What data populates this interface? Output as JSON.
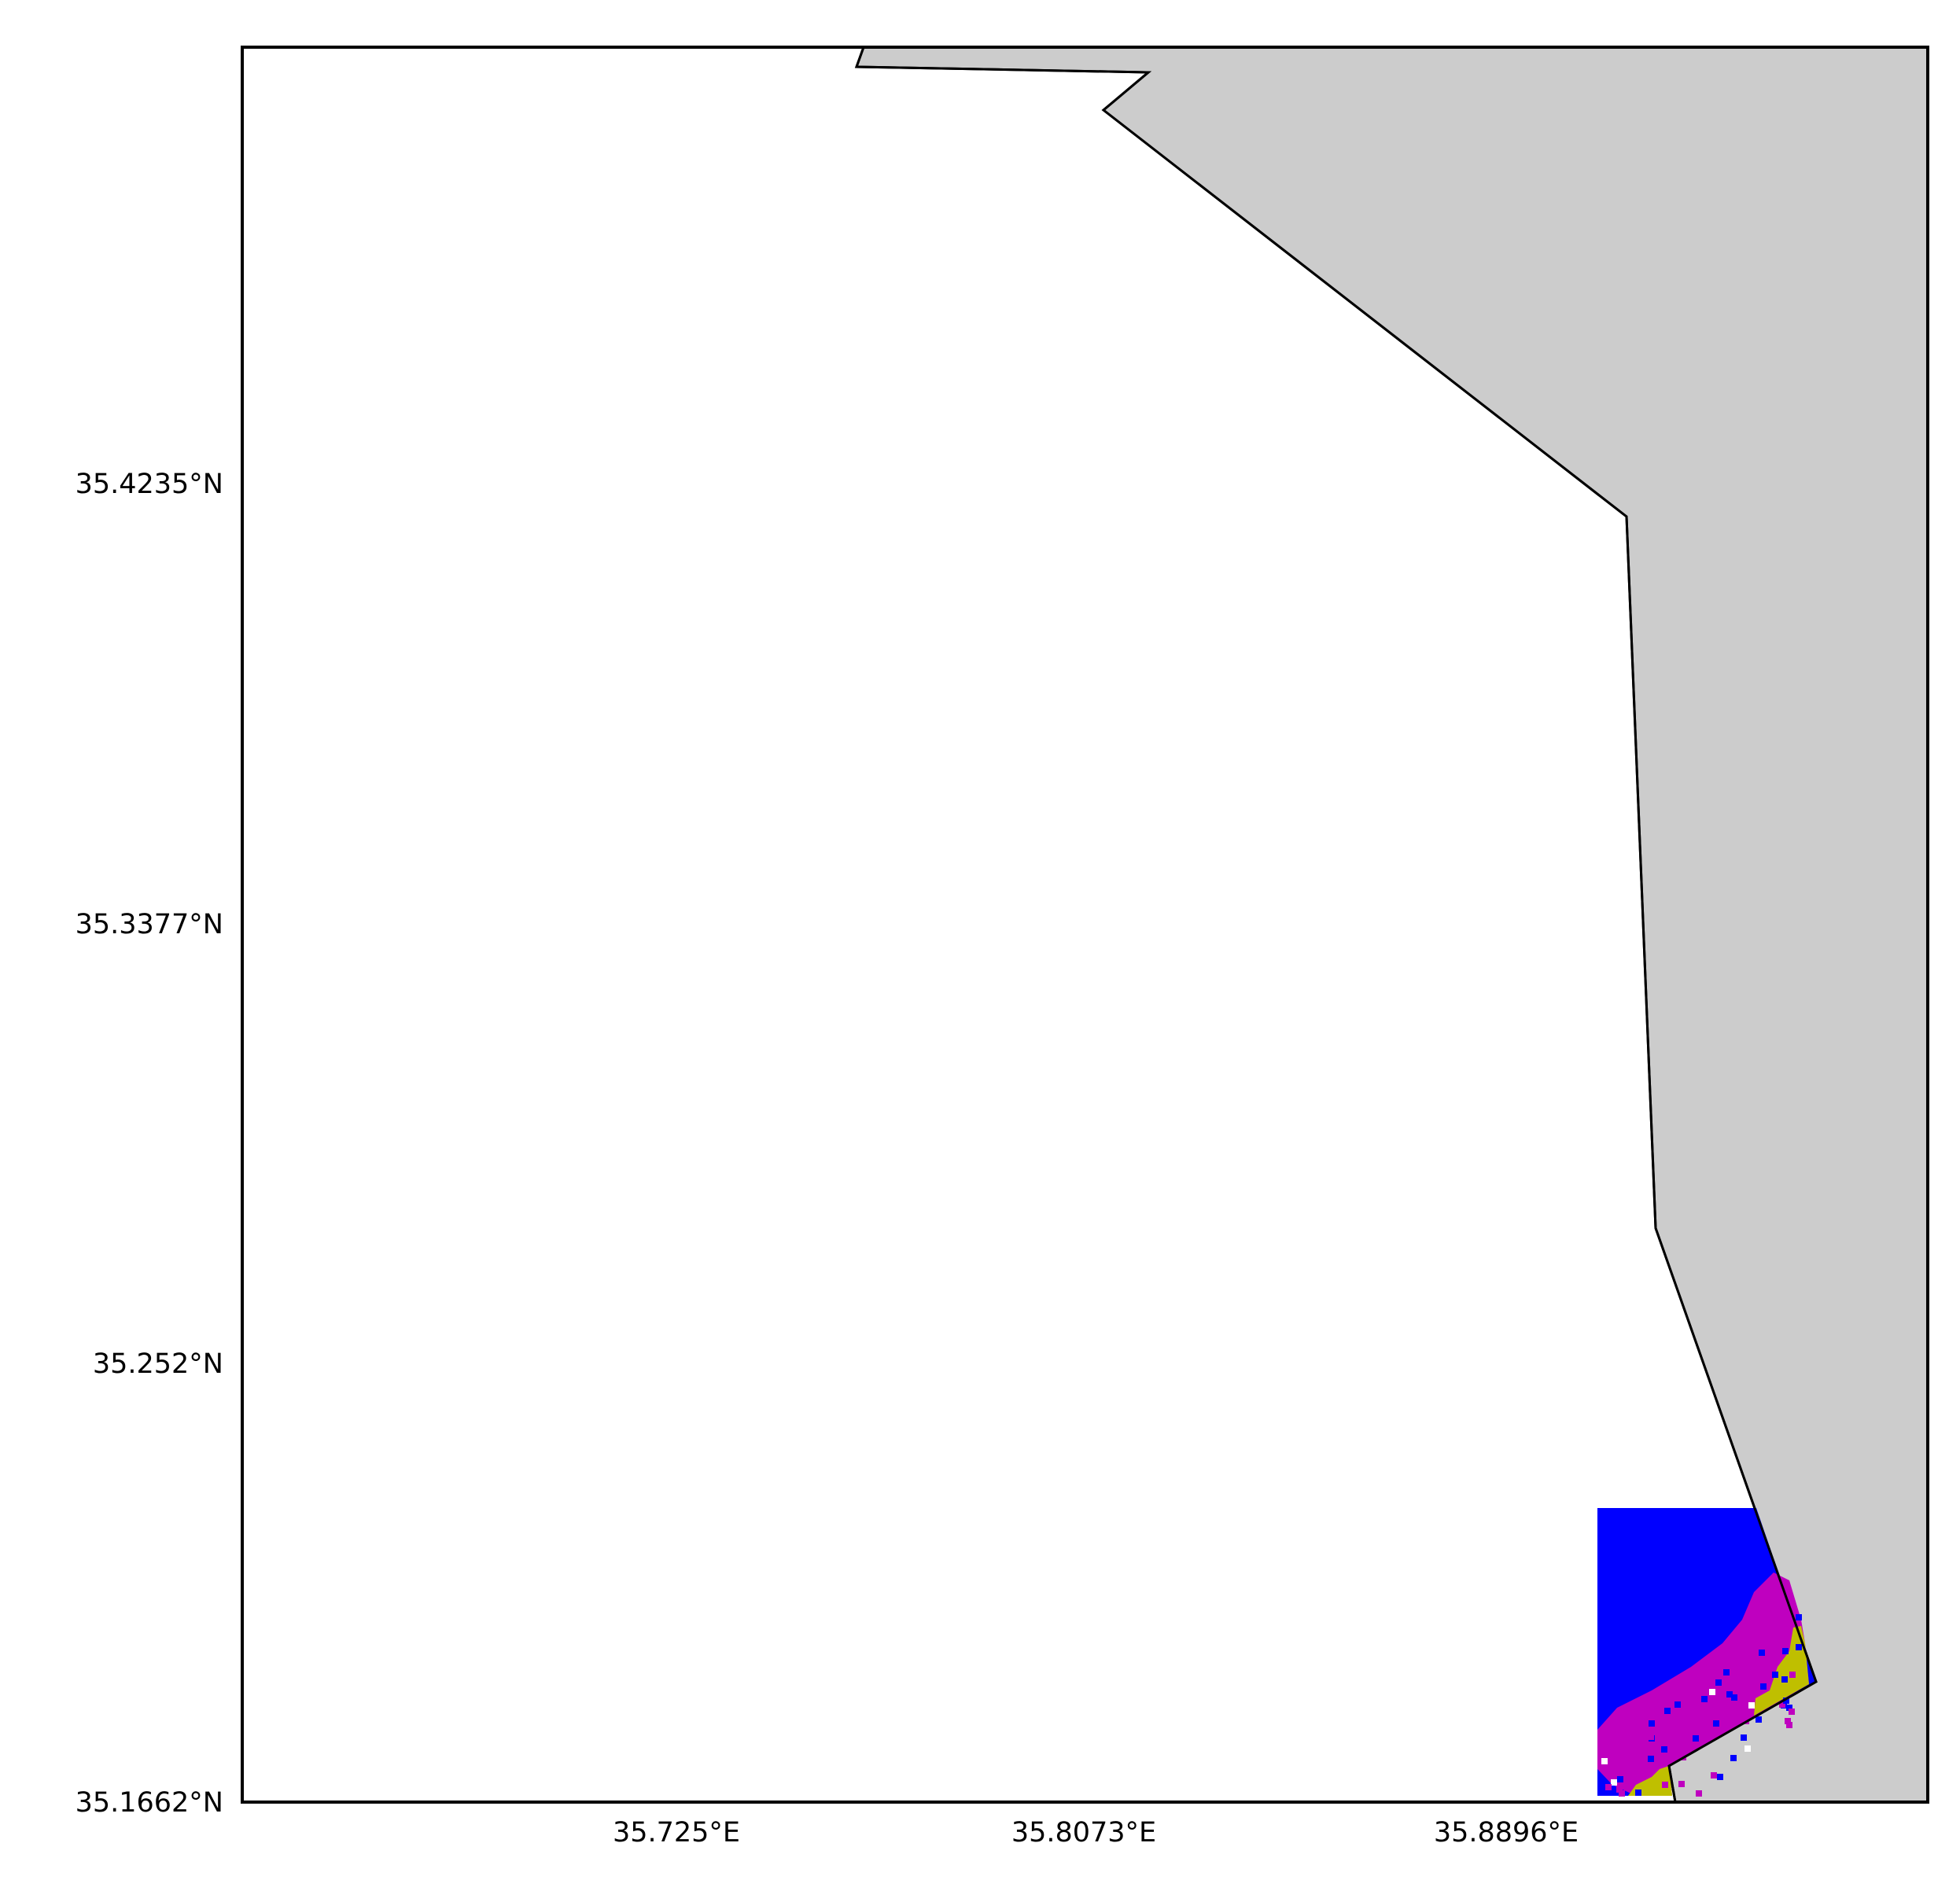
{
  "map": {
    "land_color": "#cccccc",
    "sea_color": "#ffffff",
    "coastline_color": "#000000",
    "x_ticks": [
      "35.725°E",
      "35.8073°E",
      "35.8896°E"
    ],
    "y_ticks": [
      "35.4235°N",
      "35.3377°N",
      "35.252°N",
      "35.1662°N"
    ],
    "raster": {
      "colors": {
        "blue": "#0000ff",
        "magenta": "#bf00bf",
        "olive": "#bfbf00",
        "white": "#ffffff"
      }
    }
  }
}
